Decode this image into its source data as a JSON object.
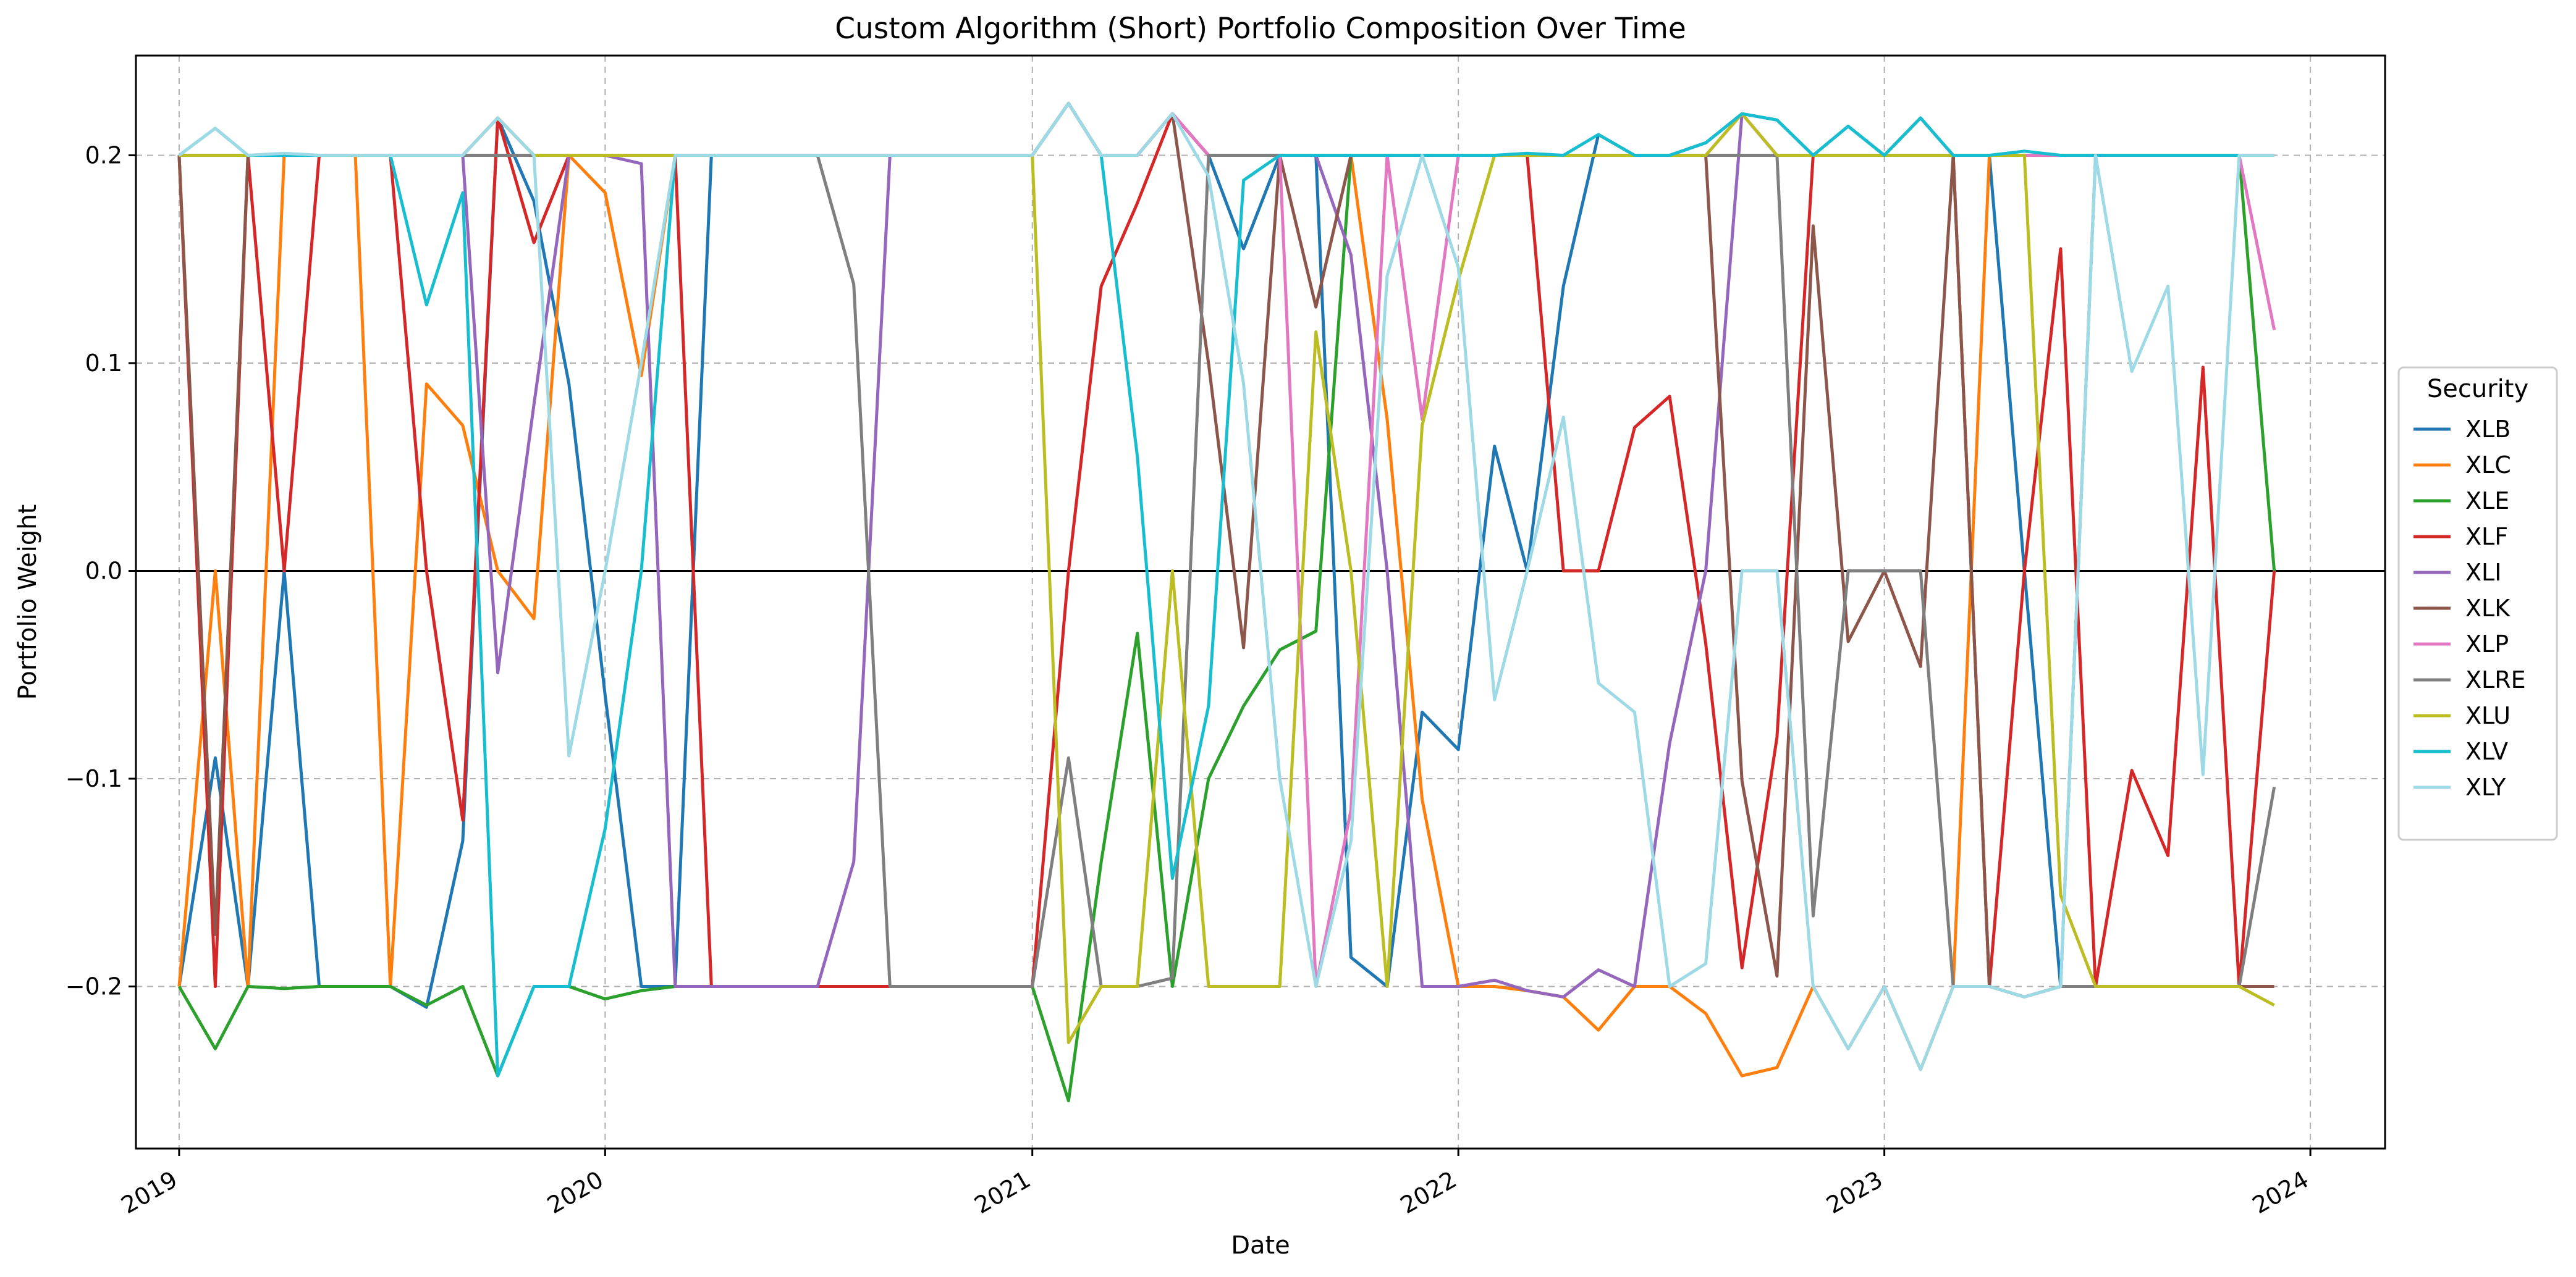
{
  "chart_data": {
    "type": "line",
    "title": "Custom Algorithm (Short) Portfolio Composition Over Time",
    "xlabel": "Date",
    "ylabel": "Portfolio Weight",
    "x_axis_type": "date",
    "xlim": [
      "2018-11-25",
      "2024-03-05"
    ],
    "ylim": [
      -0.278,
      0.248
    ],
    "x_ticks": [
      "2019-01-01",
      "2020-01-01",
      "2021-01-01",
      "2022-01-01",
      "2023-01-01",
      "2024-01-01"
    ],
    "x_tick_labels": [
      "2019",
      "2020",
      "2021",
      "2022",
      "2023",
      "2024"
    ],
    "y_ticks": [
      -0.2,
      -0.1,
      0.0,
      0.1,
      0.2
    ],
    "y_tick_labels": [
      "−0.2",
      "−0.1",
      "0.0",
      "0.1",
      "0.2"
    ],
    "grid": true,
    "zero_line": true,
    "legend": {
      "title": "Security",
      "placement": "right-outside"
    },
    "x": [
      "2019-01",
      "2019-02",
      "2019-03",
      "2019-04",
      "2019-05",
      "2019-06",
      "2019-07",
      "2019-08",
      "2019-09",
      "2019-10",
      "2019-11",
      "2019-12",
      "2020-01",
      "2020-02",
      "2020-03",
      "2020-04",
      "2020-05",
      "2020-06",
      "2020-07",
      "2020-08",
      "2020-09",
      "2020-10",
      "2020-11",
      "2020-12",
      "2021-01",
      "2021-02",
      "2021-03",
      "2021-04",
      "2021-05",
      "2021-06",
      "2021-07",
      "2021-08",
      "2021-09",
      "2021-10",
      "2021-11",
      "2021-12",
      "2022-01",
      "2022-02",
      "2022-03",
      "2022-04",
      "2022-05",
      "2022-06",
      "2022-07",
      "2022-08",
      "2022-09",
      "2022-10",
      "2022-11",
      "2022-12",
      "2023-01",
      "2023-02",
      "2023-03",
      "2023-04",
      "2023-05",
      "2023-06",
      "2023-07",
      "2023-08",
      "2023-09",
      "2023-10",
      "2023-11",
      "2023-12"
    ],
    "series": [
      {
        "name": "XLB",
        "color": "#1f77b4",
        "values": [
          -0.2,
          -0.09,
          -0.2,
          0.0,
          -0.2,
          -0.2,
          -0.2,
          -0.21,
          -0.13,
          0.218,
          0.178,
          0.09,
          -0.06,
          -0.2,
          -0.2,
          0.2,
          0.2,
          0.2,
          0.2,
          0.2,
          0.2,
          0.2,
          0.2,
          0.2,
          0.2,
          0.225,
          0.2,
          0.2,
          0.22,
          0.2,
          0.155,
          0.2,
          0.2,
          -0.186,
          -0.2,
          -0.068,
          -0.086,
          0.06,
          0.0,
          0.137,
          0.21,
          0.2,
          0.2,
          0.206,
          0.22,
          0.217,
          0.2,
          0.214,
          0.2,
          0.218,
          0.2,
          0.2,
          0.0,
          -0.2,
          0.2,
          0.2,
          0.2,
          0.2,
          0.2,
          0.2
        ]
      },
      {
        "name": "XLC",
        "color": "#ff7f0e",
        "values": [
          -0.2,
          0.0,
          -0.2,
          0.2,
          0.2,
          0.2,
          -0.2,
          0.09,
          0.07,
          0.0,
          -0.023,
          0.2,
          0.182,
          0.094,
          0.2,
          0.2,
          0.2,
          0.2,
          0.2,
          0.2,
          0.2,
          0.2,
          0.2,
          0.2,
          0.2,
          0.225,
          0.2,
          0.2,
          0.22,
          0.2,
          0.2,
          0.2,
          0.2,
          0.2,
          0.073,
          -0.11,
          -0.2,
          -0.2,
          -0.202,
          -0.205,
          -0.221,
          -0.2,
          -0.2,
          -0.213,
          -0.243,
          -0.239,
          -0.2,
          -0.23,
          -0.2,
          -0.24,
          -0.2,
          0.2,
          0.2,
          0.2,
          0.2,
          0.2,
          0.2,
          0.2,
          0.2,
          0.2
        ]
      },
      {
        "name": "XLE",
        "color": "#2ca02c",
        "values": [
          -0.2,
          -0.23,
          -0.2,
          -0.201,
          -0.2,
          -0.2,
          -0.2,
          -0.209,
          -0.2,
          -0.243,
          -0.2,
          -0.2,
          -0.206,
          -0.202,
          -0.2,
          -0.2,
          -0.2,
          -0.2,
          -0.2,
          -0.2,
          -0.2,
          -0.2,
          -0.2,
          -0.2,
          -0.2,
          -0.255,
          -0.14,
          -0.03,
          -0.2,
          -0.1,
          -0.065,
          -0.038,
          -0.029,
          0.2,
          0.2,
          0.2,
          0.2,
          0.2,
          0.2,
          0.2,
          0.2,
          0.2,
          0.2,
          0.2,
          0.2,
          0.2,
          0.2,
          0.2,
          0.2,
          0.2,
          0.2,
          0.2,
          0.2,
          0.2,
          0.2,
          0.2,
          0.2,
          0.2,
          0.2,
          0.0
        ]
      },
      {
        "name": "XLF",
        "color": "#d62728",
        "values": [
          0.2,
          -0.2,
          0.2,
          0.0,
          0.2,
          0.2,
          0.2,
          0.0,
          -0.12,
          0.218,
          0.158,
          0.2,
          0.2,
          0.2,
          0.2,
          -0.2,
          -0.2,
          -0.2,
          -0.2,
          -0.2,
          -0.2,
          -0.2,
          -0.2,
          -0.2,
          -0.2,
          0.0,
          0.137,
          0.177,
          0.22,
          0.2,
          0.2,
          0.2,
          0.2,
          0.2,
          0.2,
          0.2,
          0.2,
          0.2,
          0.2,
          0.0,
          0.0,
          0.069,
          0.084,
          -0.035,
          -0.191,
          -0.08,
          0.2,
          0.2,
          0.2,
          0.2,
          0.2,
          -0.2,
          0.0,
          0.155,
          -0.2,
          -0.096,
          -0.137,
          0.098,
          -0.2,
          0.0
        ]
      },
      {
        "name": "XLI",
        "color": "#9467bd",
        "values": [
          0.2,
          0.2,
          0.2,
          0.2,
          0.2,
          0.2,
          0.2,
          0.2,
          0.2,
          -0.049,
          0.08,
          0.2,
          0.2,
          0.196,
          -0.2,
          -0.2,
          -0.2,
          -0.2,
          -0.2,
          -0.14,
          0.2,
          0.2,
          0.2,
          0.2,
          0.2,
          0.225,
          0.2,
          0.2,
          0.22,
          0.2,
          0.2,
          0.2,
          0.2,
          0.152,
          0.0,
          -0.2,
          -0.2,
          -0.197,
          -0.202,
          -0.205,
          -0.192,
          -0.2,
          -0.083,
          0.0,
          0.22,
          0.2,
          0.2,
          0.2,
          0.2,
          0.2,
          0.2,
          0.2,
          0.2,
          0.2,
          0.2,
          0.2,
          0.2,
          0.2,
          0.2,
          0.2
        ]
      },
      {
        "name": "XLK",
        "color": "#8c564b",
        "values": [
          0.2,
          -0.175,
          0.2,
          0.2,
          0.2,
          0.2,
          0.2,
          0.2,
          0.2,
          0.218,
          0.2,
          0.2,
          0.2,
          0.2,
          0.2,
          0.2,
          0.2,
          0.2,
          0.2,
          0.2,
          0.2,
          0.2,
          0.2,
          0.2,
          0.2,
          0.225,
          0.2,
          0.2,
          0.22,
          0.1,
          -0.037,
          0.2,
          0.127,
          0.2,
          0.2,
          0.2,
          0.2,
          0.2,
          0.2,
          0.2,
          0.2,
          0.2,
          0.2,
          0.2,
          -0.101,
          -0.195,
          0.166,
          -0.034,
          0.0,
          -0.046,
          0.2,
          -0.2,
          -0.205,
          -0.2,
          -0.2,
          -0.2,
          -0.2,
          -0.2,
          -0.2,
          -0.2
        ]
      },
      {
        "name": "XLP",
        "color": "#e377c2",
        "values": [
          0.2,
          0.2,
          0.2,
          0.2,
          0.2,
          0.2,
          0.2,
          0.2,
          0.2,
          0.218,
          0.2,
          0.2,
          0.2,
          0.2,
          0.2,
          0.2,
          0.2,
          0.2,
          0.2,
          0.2,
          0.2,
          0.2,
          0.2,
          0.2,
          0.2,
          0.225,
          0.2,
          0.2,
          0.22,
          0.2,
          0.2,
          0.2,
          -0.2,
          -0.115,
          0.2,
          0.073,
          0.2,
          0.2,
          0.2,
          0.2,
          0.2,
          0.2,
          0.2,
          0.2,
          0.22,
          0.2,
          0.2,
          0.2,
          0.2,
          0.2,
          0.2,
          0.2,
          0.2,
          0.2,
          0.2,
          0.2,
          0.2,
          0.2,
          0.2,
          0.116
        ]
      },
      {
        "name": "XLRE",
        "color": "#7f7f7f",
        "values": [
          0.2,
          0.2,
          0.2,
          0.2,
          0.2,
          0.2,
          0.2,
          0.2,
          0.2,
          0.2,
          0.2,
          0.2,
          0.2,
          0.2,
          0.2,
          0.2,
          0.2,
          0.2,
          0.2,
          0.138,
          -0.2,
          -0.2,
          -0.2,
          -0.2,
          -0.2,
          -0.09,
          -0.2,
          -0.2,
          -0.196,
          0.2,
          0.2,
          0.2,
          0.2,
          0.2,
          0.2,
          0.2,
          0.2,
          0.2,
          0.2,
          0.2,
          0.2,
          0.2,
          0.2,
          0.2,
          0.2,
          0.2,
          -0.166,
          0.0,
          0.0,
          0.0,
          -0.2,
          -0.2,
          -0.205,
          -0.2,
          -0.2,
          -0.2,
          -0.2,
          -0.2,
          -0.2,
          -0.104
        ]
      },
      {
        "name": "XLU",
        "color": "#bcbd22",
        "values": [
          0.2,
          0.2,
          0.2,
          0.2,
          0.2,
          0.2,
          0.2,
          0.2,
          0.2,
          0.218,
          0.2,
          0.2,
          0.2,
          0.2,
          0.2,
          0.2,
          0.2,
          0.2,
          0.2,
          0.2,
          0.2,
          0.2,
          0.2,
          0.2,
          0.2,
          -0.227,
          -0.2,
          -0.2,
          0.0,
          -0.2,
          -0.2,
          -0.2,
          0.115,
          0.0,
          -0.2,
          0.07,
          0.14,
          0.2,
          0.2,
          0.2,
          0.2,
          0.2,
          0.2,
          0.2,
          0.22,
          0.2,
          0.2,
          0.2,
          0.2,
          0.2,
          0.2,
          0.2,
          0.2,
          -0.156,
          -0.2,
          -0.2,
          -0.2,
          -0.2,
          -0.2,
          -0.209
        ]
      },
      {
        "name": "XLV",
        "color": "#17becf",
        "values": [
          0.2,
          0.213,
          0.2,
          0.2,
          0.2,
          0.2,
          0.2,
          0.128,
          0.182,
          -0.243,
          -0.2,
          -0.2,
          -0.124,
          0.0,
          0.2,
          0.2,
          0.2,
          0.2,
          0.2,
          0.2,
          0.2,
          0.2,
          0.2,
          0.2,
          0.2,
          0.225,
          0.2,
          0.055,
          -0.148,
          -0.065,
          0.188,
          0.2,
          0.2,
          0.2,
          0.2,
          0.2,
          0.2,
          0.2,
          0.201,
          0.2,
          0.21,
          0.2,
          0.2,
          0.206,
          0.22,
          0.217,
          0.2,
          0.214,
          0.2,
          0.218,
          0.2,
          0.2,
          0.202,
          0.2,
          0.2,
          0.2,
          0.2,
          0.2,
          0.2,
          0.2
        ]
      },
      {
        "name": "XLY",
        "color": "#9edae5",
        "values": [
          0.2,
          0.213,
          0.2,
          0.201,
          0.2,
          0.2,
          0.2,
          0.2,
          0.2,
          0.218,
          0.2,
          -0.089,
          0.0,
          0.1,
          0.2,
          0.2,
          0.2,
          0.2,
          0.2,
          0.2,
          0.2,
          0.2,
          0.2,
          0.2,
          0.2,
          0.225,
          0.2,
          0.2,
          0.22,
          0.19,
          0.09,
          -0.1,
          -0.2,
          -0.13,
          0.142,
          0.2,
          0.146,
          -0.062,
          0.0,
          0.074,
          -0.054,
          -0.068,
          -0.2,
          -0.189,
          0.0,
          0.0,
          -0.2,
          -0.23,
          -0.2,
          -0.24,
          -0.2,
          -0.2,
          -0.205,
          -0.2,
          0.2,
          0.096,
          0.137,
          -0.098,
          0.2,
          0.2
        ]
      }
    ]
  }
}
